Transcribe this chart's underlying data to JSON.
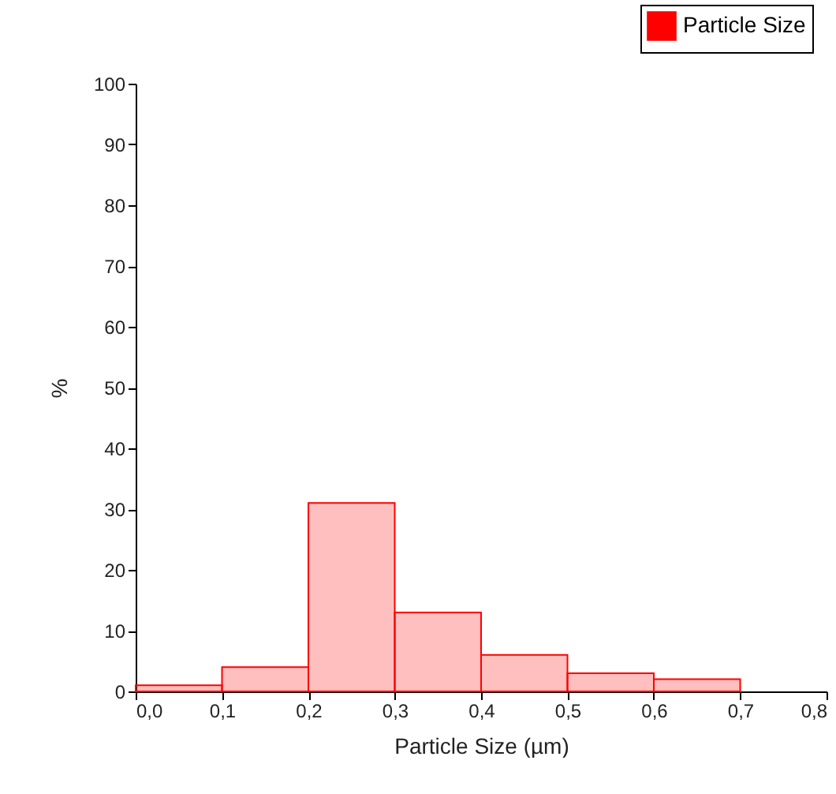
{
  "chart_data": {
    "type": "histogram",
    "xlabel": "Particle Size (µm)",
    "ylabel": "%",
    "bins": [
      0,
      0.1,
      0.2,
      0.3,
      0.4,
      0.5,
      0.6,
      0.7
    ],
    "series": [
      {
        "name": "Particle Size",
        "color": "#ff0000",
        "values": [
          1,
          4,
          31,
          13,
          6,
          3,
          2
        ]
      }
    ],
    "xlim": [
      0,
      0.8
    ],
    "ylim": [
      0,
      100
    ],
    "xticks": [
      {
        "value": 0,
        "label": "0,0"
      },
      {
        "value": 0.1,
        "label": "0,1"
      },
      {
        "value": 0.2,
        "label": "0,2"
      },
      {
        "value": 0.3,
        "label": "0,3"
      },
      {
        "value": 0.4,
        "label": "0,4"
      },
      {
        "value": 0.5,
        "label": "0,5"
      },
      {
        "value": 0.6,
        "label": "0,6"
      },
      {
        "value": 0.7,
        "label": "0,7"
      },
      {
        "value": 0.8,
        "label": "0,8"
      }
    ],
    "yticks": [
      0,
      10,
      20,
      30,
      40,
      50,
      60,
      70,
      80,
      90,
      100
    ],
    "grid": false,
    "legend": "top right"
  }
}
